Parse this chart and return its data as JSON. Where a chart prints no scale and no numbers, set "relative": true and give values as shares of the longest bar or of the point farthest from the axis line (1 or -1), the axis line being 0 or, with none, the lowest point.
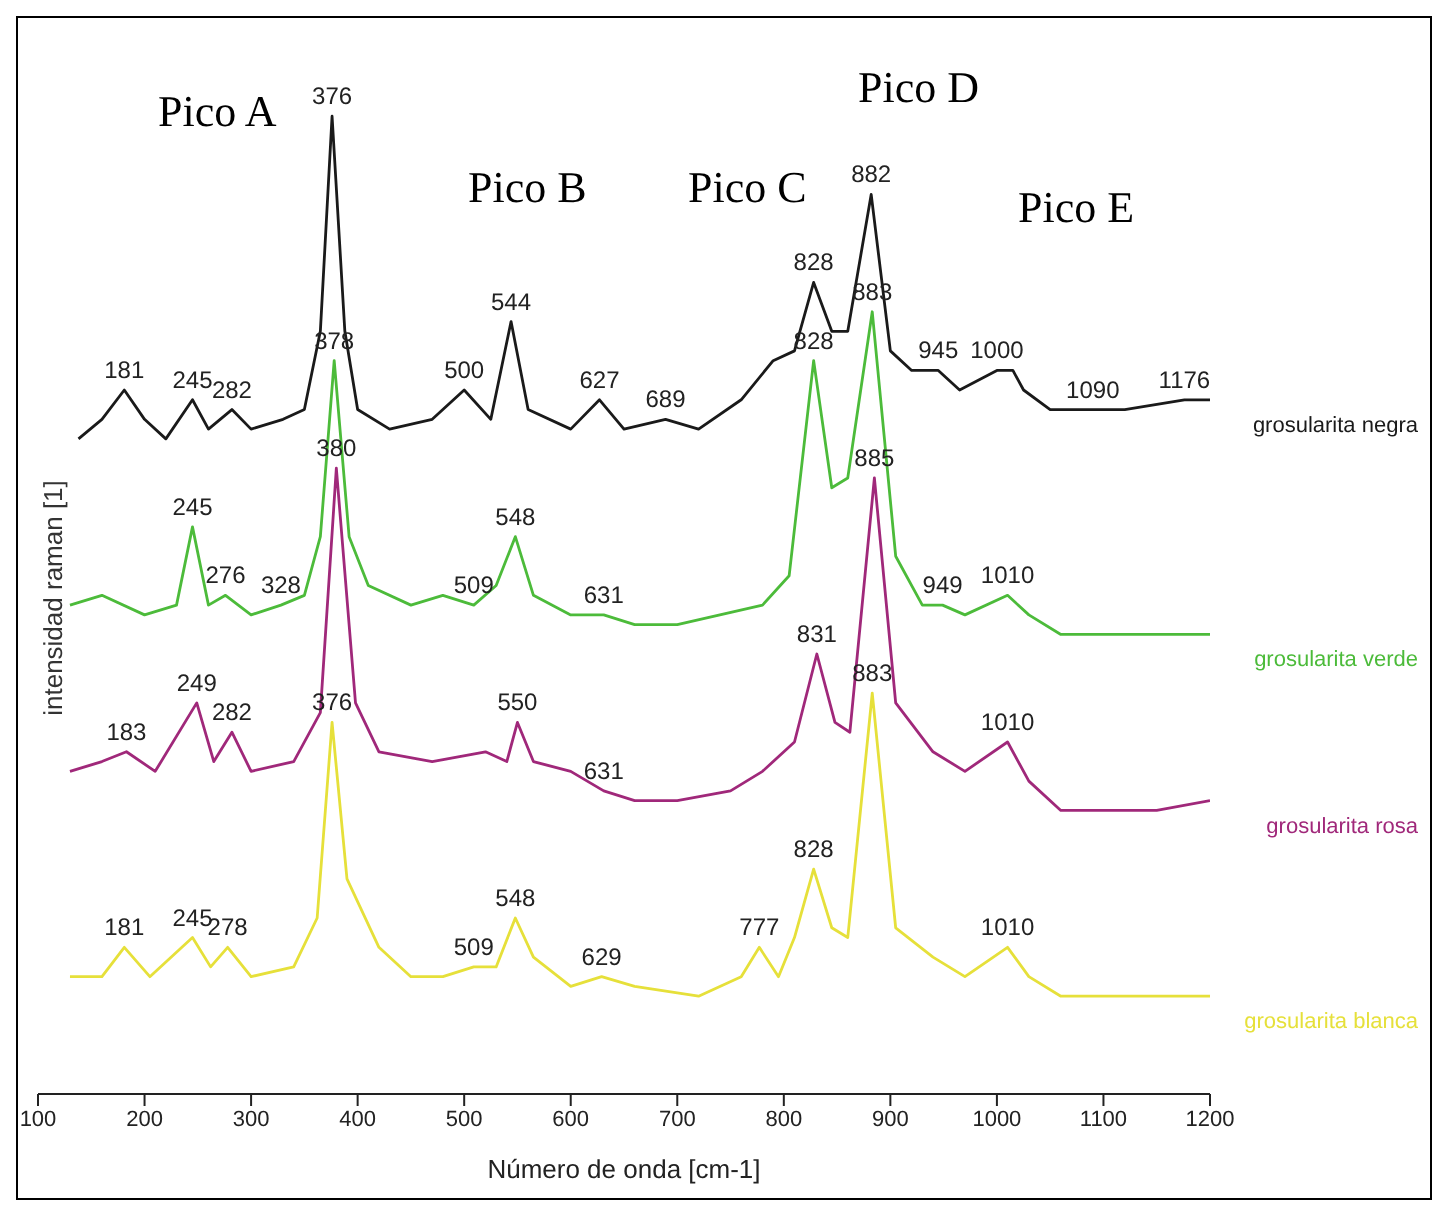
{
  "chart_data": {
    "type": "line",
    "relative": true,
    "xlabel": "Número de onda [cm-1]",
    "ylabel": "intensidad raman [1]",
    "xlim": [
      100,
      1200
    ],
    "xticks": [
      100,
      200,
      300,
      400,
      500,
      600,
      700,
      800,
      900,
      1000,
      1100,
      1200
    ],
    "grid": false,
    "legend": false,
    "marker": "none",
    "line_style": "solid",
    "series": [
      {
        "name": "grosularita negra",
        "color": "#1a1a1a",
        "x": [
          138,
          160,
          181,
          200,
          220,
          245,
          260,
          282,
          300,
          330,
          350,
          365,
          376,
          388,
          400,
          430,
          470,
          500,
          525,
          544,
          560,
          600,
          627,
          650,
          689,
          720,
          760,
          790,
          810,
          828,
          845,
          860,
          882,
          900,
          920,
          945,
          965,
          1000,
          1015,
          1025,
          1050,
          1090,
          1120,
          1176,
          1200
        ],
        "values": [
          0.67,
          0.69,
          0.72,
          0.69,
          0.67,
          0.71,
          0.68,
          0.7,
          0.68,
          0.69,
          0.7,
          0.78,
          1.0,
          0.78,
          0.7,
          0.68,
          0.69,
          0.72,
          0.69,
          0.79,
          0.7,
          0.68,
          0.71,
          0.68,
          0.69,
          0.68,
          0.71,
          0.75,
          0.76,
          0.83,
          0.78,
          0.78,
          0.92,
          0.76,
          0.74,
          0.74,
          0.72,
          0.74,
          0.74,
          0.72,
          0.7,
          0.7,
          0.7,
          0.71,
          0.71
        ]
      },
      {
        "name": "grosularita verde",
        "color": "#4cbb3a",
        "x": [
          130,
          160,
          200,
          230,
          245,
          260,
          276,
          300,
          328,
          350,
          365,
          378,
          392,
          410,
          450,
          480,
          509,
          530,
          548,
          565,
          600,
          631,
          660,
          700,
          740,
          780,
          805,
          828,
          845,
          860,
          883,
          905,
          930,
          949,
          970,
          1010,
          1030,
          1060,
          1100,
          1150,
          1200
        ],
        "values": [
          0.5,
          0.51,
          0.49,
          0.5,
          0.58,
          0.5,
          0.51,
          0.49,
          0.5,
          0.51,
          0.57,
          0.75,
          0.57,
          0.52,
          0.5,
          0.51,
          0.5,
          0.52,
          0.57,
          0.51,
          0.49,
          0.49,
          0.48,
          0.48,
          0.49,
          0.5,
          0.53,
          0.75,
          0.62,
          0.63,
          0.8,
          0.55,
          0.5,
          0.5,
          0.49,
          0.51,
          0.49,
          0.47,
          0.47,
          0.47,
          0.47
        ]
      },
      {
        "name": "grosularita rosa",
        "color": "#a0287a",
        "x": [
          130,
          160,
          183,
          210,
          249,
          265,
          282,
          300,
          340,
          365,
          380,
          398,
          420,
          470,
          520,
          540,
          550,
          565,
          600,
          631,
          660,
          700,
          750,
          780,
          810,
          831,
          848,
          862,
          885,
          905,
          940,
          970,
          1010,
          1020,
          1030,
          1060,
          1100,
          1150,
          1200
        ],
        "values": [
          0.33,
          0.34,
          0.35,
          0.33,
          0.4,
          0.34,
          0.37,
          0.33,
          0.34,
          0.39,
          0.64,
          0.4,
          0.35,
          0.34,
          0.35,
          0.34,
          0.38,
          0.34,
          0.33,
          0.31,
          0.3,
          0.3,
          0.31,
          0.33,
          0.36,
          0.45,
          0.38,
          0.37,
          0.63,
          0.4,
          0.35,
          0.33,
          0.36,
          0.34,
          0.32,
          0.29,
          0.29,
          0.29,
          0.3
        ]
      },
      {
        "name": "grosularita blanca",
        "color": "#e6e03a",
        "x": [
          130,
          160,
          181,
          205,
          245,
          262,
          278,
          300,
          340,
          362,
          376,
          390,
          420,
          450,
          480,
          509,
          530,
          548,
          565,
          600,
          629,
          660,
          720,
          760,
          777,
          795,
          810,
          828,
          845,
          860,
          883,
          905,
          940,
          970,
          1010,
          1030,
          1060,
          1100,
          1150,
          1200
        ],
        "values": [
          0.12,
          0.12,
          0.15,
          0.12,
          0.16,
          0.13,
          0.15,
          0.12,
          0.13,
          0.18,
          0.38,
          0.22,
          0.15,
          0.12,
          0.12,
          0.13,
          0.13,
          0.18,
          0.14,
          0.11,
          0.12,
          0.11,
          0.1,
          0.12,
          0.15,
          0.12,
          0.16,
          0.23,
          0.17,
          0.16,
          0.41,
          0.17,
          0.14,
          0.12,
          0.15,
          0.12,
          0.1,
          0.1,
          0.1,
          0.1
        ]
      }
    ],
    "annotations": [
      "Pico A",
      "Pico B",
      "Pico C",
      "Pico D",
      "Pico E",
      {
        "text": "376",
        "x": 376,
        "y": 1.0
      },
      {
        "text": "181",
        "x": 181,
        "y": 0.72
      },
      {
        "text": "245",
        "x": 245,
        "y": 0.71
      },
      {
        "text": "282",
        "x": 282,
        "y": 0.7
      },
      {
        "text": "500",
        "x": 500,
        "y": 0.72
      },
      {
        "text": "544",
        "x": 544,
        "y": 0.79
      },
      {
        "text": "627",
        "x": 627,
        "y": 0.71
      },
      {
        "text": "689",
        "x": 689,
        "y": 0.69
      },
      {
        "text": "828",
        "x": 828,
        "y": 0.83
      },
      {
        "text": "882",
        "x": 882,
        "y": 0.92
      },
      {
        "text": "945",
        "x": 945,
        "y": 0.74
      },
      {
        "text": "1000",
        "x": 1000,
        "y": 0.74
      },
      {
        "text": "1090",
        "x": 1090,
        "y": 0.7
      },
      {
        "text": "1176",
        "x": 1176,
        "y": 0.71
      },
      {
        "text": "378",
        "x": 378,
        "y": 0.75
      },
      {
        "text": "245",
        "x": 245,
        "y": 0.58
      },
      {
        "text": "276",
        "x": 276,
        "y": 0.51
      },
      {
        "text": "328",
        "x": 328,
        "y": 0.5
      },
      {
        "text": "509",
        "x": 509,
        "y": 0.5
      },
      {
        "text": "548",
        "x": 548,
        "y": 0.57
      },
      {
        "text": "631",
        "x": 631,
        "y": 0.49
      },
      {
        "text": "828",
        "x": 828,
        "y": 0.75
      },
      {
        "text": "883",
        "x": 883,
        "y": 0.8
      },
      {
        "text": "949",
        "x": 949,
        "y": 0.5
      },
      {
        "text": "1010",
        "x": 1010,
        "y": 0.51
      },
      {
        "text": "380",
        "x": 380,
        "y": 0.64
      },
      {
        "text": "183",
        "x": 183,
        "y": 0.35
      },
      {
        "text": "249",
        "x": 249,
        "y": 0.4
      },
      {
        "text": "282",
        "x": 282,
        "y": 0.37
      },
      {
        "text": "550",
        "x": 550,
        "y": 0.38
      },
      {
        "text": "631",
        "x": 631,
        "y": 0.31
      },
      {
        "text": "831",
        "x": 831,
        "y": 0.45
      },
      {
        "text": "885",
        "x": 885,
        "y": 0.63
      },
      {
        "text": "1010",
        "x": 1010,
        "y": 0.36
      },
      {
        "text": "376",
        "x": 376,
        "y": 0.38
      },
      {
        "text": "181",
        "x": 181,
        "y": 0.15
      },
      {
        "text": "245",
        "x": 245,
        "y": 0.16
      },
      {
        "text": "278",
        "x": 278,
        "y": 0.15
      },
      {
        "text": "509",
        "x": 509,
        "y": 0.13
      },
      {
        "text": "548",
        "x": 548,
        "y": 0.18
      },
      {
        "text": "629",
        "x": 629,
        "y": 0.12
      },
      {
        "text": "777",
        "x": 777,
        "y": 0.15
      },
      {
        "text": "828",
        "x": 828,
        "y": 0.23
      },
      {
        "text": "883",
        "x": 883,
        "y": 0.41
      },
      {
        "text": "1010",
        "x": 1010,
        "y": 0.15
      }
    ]
  }
}
